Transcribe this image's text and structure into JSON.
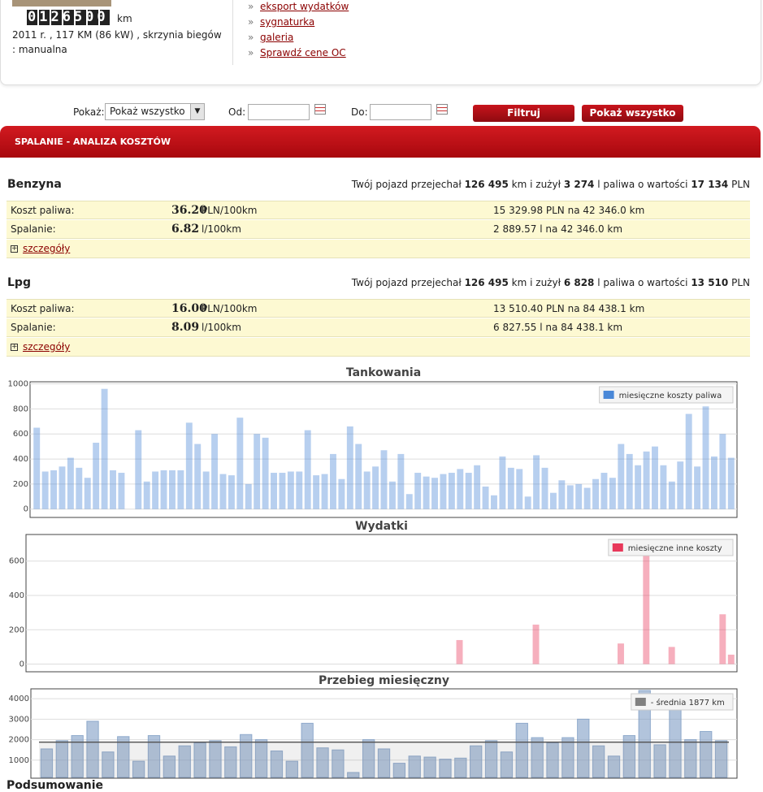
{
  "vehicle": {
    "odometer": "0126500",
    "odometer_unit": "km",
    "details": "2011 r. , 117 KM (86 kW) , skrzynia biegów : manualna"
  },
  "links": [
    "eksport wydatków",
    "sygnaturka",
    "galeria",
    "Sprawdź cene OC"
  ],
  "filter": {
    "show_label": "Pokaż:",
    "select": "Pokaż wszystko",
    "from_label": "Od:",
    "to_label": "Do:",
    "buttons": [
      "Filtruj",
      "Pokaż wszystko"
    ]
  },
  "section_title": "SPALANIE - ANALIZA KOSZTÓW",
  "fuels": [
    {
      "name": "Benzyna",
      "summary": [
        "Twój pojazd przejechał",
        "126 495",
        "km i zużył",
        "3 274",
        "l paliwa o wartości",
        "17 134",
        "PLN"
      ],
      "rows": [
        {
          "label": "Koszt paliwa:",
          "value": "36.20",
          "unit": "PLN/100km",
          "detail": "15 329.98 PLN na 42 346.0 km"
        },
        {
          "label": "Spalanie:",
          "value": "6.82",
          "unit": "l/100km",
          "detail": "2 889.57 l na 42 346.0 km"
        }
      ],
      "details_link": "szczegóły"
    },
    {
      "name": "Lpg",
      "summary": [
        "Twój pojazd przejechał",
        "126 495",
        "km i zużył",
        "6 828",
        "l paliwa o wartości",
        "13 510",
        "PLN"
      ],
      "rows": [
        {
          "label": "Koszt paliwa:",
          "value": "16.00",
          "unit": "PLN/100km",
          "detail": "13 510.40 PLN na 84 438.1 km"
        },
        {
          "label": "Spalanie:",
          "value": "8.09",
          "unit": "l/100km",
          "detail": "6 827.55 l na 84 438.1 km"
        }
      ],
      "details_link": "szczegóły"
    }
  ],
  "chart_data": [
    {
      "type": "bar",
      "title": "Tankowania",
      "ylim": [
        -60,
        1010
      ],
      "yticks": [
        0,
        200,
        400,
        600,
        800,
        1000
      ],
      "grid": true,
      "legend": "upper right",
      "series": [
        {
          "name": "miesięczne koszty paliwa",
          "color": "#4a88d8",
          "values": [
            650,
            300,
            310,
            340,
            410,
            330,
            250,
            530,
            960,
            310,
            290,
            0,
            630,
            220,
            300,
            310,
            310,
            310,
            690,
            520,
            300,
            600,
            280,
            270,
            730,
            200,
            600,
            570,
            290,
            290,
            300,
            300,
            630,
            270,
            280,
            440,
            240,
            660,
            520,
            300,
            340,
            470,
            220,
            440,
            120,
            290,
            260,
            250,
            280,
            290,
            320,
            290,
            350,
            180,
            110,
            420,
            330,
            320,
            100,
            430,
            330,
            130,
            230,
            190,
            200,
            170,
            240,
            290,
            250,
            520,
            440,
            350,
            460,
            500,
            350,
            220,
            380,
            760,
            340,
            820,
            420,
            600,
            410
          ]
        }
      ]
    },
    {
      "type": "bar",
      "title": "Wydatki",
      "ylim": [
        -40,
        750
      ],
      "yticks": [
        0,
        200,
        400,
        600
      ],
      "grid": true,
      "legend": "upper right",
      "series": [
        {
          "name": "miesięczne inne koszty",
          "color": "#e8385a",
          "values": [
            0,
            0,
            0,
            0,
            0,
            0,
            0,
            0,
            0,
            0,
            0,
            0,
            0,
            0,
            0,
            0,
            0,
            0,
            0,
            0,
            0,
            0,
            0,
            0,
            0,
            0,
            0,
            0,
            0,
            0,
            0,
            0,
            0,
            0,
            0,
            0,
            0,
            0,
            0,
            0,
            0,
            0,
            0,
            0,
            0,
            0,
            0,
            0,
            0,
            0,
            140,
            0,
            0,
            0,
            0,
            0,
            0,
            0,
            0,
            230,
            0,
            0,
            0,
            0,
            0,
            0,
            0,
            0,
            0,
            120,
            0,
            0,
            650,
            0,
            0,
            100,
            0,
            0,
            0,
            0,
            0,
            290,
            55
          ]
        }
      ]
    },
    {
      "type": "bar",
      "title": "Przebieg miesięczny",
      "ylim": [
        160,
        4440
      ],
      "yticks": [
        1000,
        2000,
        3000,
        4000
      ],
      "grid": true,
      "legend": "upper right",
      "color": "#7f9dc4",
      "values": [
        1550,
        1950,
        2200,
        2900,
        1400,
        2150,
        950,
        2200,
        1200,
        1700,
        1850,
        1950,
        1650,
        2250,
        2000,
        1450,
        950,
        2800,
        1600,
        1500,
        400,
        2000,
        1550,
        850,
        1200,
        1150,
        1050,
        1100,
        1700,
        1950,
        1400,
        2800,
        2100,
        1850,
        2100,
        3000,
        1700,
        1200,
        2200,
        4400,
        1750,
        3800,
        2000,
        2400,
        1950
      ],
      "average": {
        "name": "- średnia 1877 km",
        "value": 1877,
        "color": "#808080"
      }
    }
  ],
  "footer": "Podsumowanie"
}
